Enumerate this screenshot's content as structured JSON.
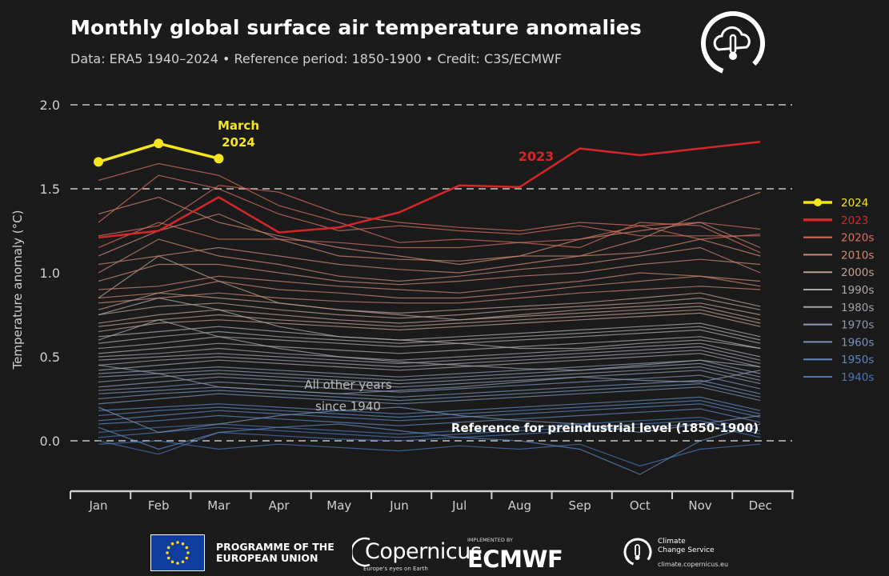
{
  "header": {
    "title": "Monthly global surface air temperature anomalies",
    "subtitle": "Data: ERA5 1940–2024 • Reference period: 1850-1900 • Credit: C3S/ECMWF"
  },
  "chart_data": {
    "type": "line",
    "ylabel": "Temperature anomaly (°C)",
    "ylim": [
      -0.3,
      2.0
    ],
    "yticks": [
      0.0,
      0.5,
      1.0,
      1.5,
      2.0
    ],
    "ytick_labels": [
      "0.0",
      "0.5",
      "1.0",
      "1.5",
      "2.0"
    ],
    "categories": [
      "Jan",
      "Feb",
      "Mar",
      "Apr",
      "May",
      "Jun",
      "Jul",
      "Aug",
      "Sep",
      "Oct",
      "Nov",
      "Dec"
    ],
    "grid": "dashed horizontal at 0.0, 1.5, 2.0",
    "legend_position": "right",
    "highlight_series": [
      {
        "name": "2024",
        "color": "#f5e51c",
        "values": [
          1.66,
          1.77,
          1.68
        ]
      },
      {
        "name": "2023",
        "color": "#d7262a",
        "values": [
          1.21,
          1.25,
          1.45,
          1.24,
          1.27,
          1.36,
          1.52,
          1.51,
          1.74,
          1.7,
          1.74,
          1.78
        ]
      }
    ],
    "decade_series": [
      {
        "name": "2020s",
        "color": "#d9705f",
        "values": [
          [
            1.22,
            1.28,
            1.52,
            1.48,
            1.35,
            1.3,
            1.27,
            1.25,
            1.3,
            1.28,
            1.3,
            1.26
          ],
          [
            1.3,
            1.58,
            1.5,
            1.35,
            1.25,
            1.28,
            1.25,
            1.23,
            1.28,
            1.22,
            1.22,
            1.22
          ],
          [
            1.15,
            1.3,
            1.2,
            1.2,
            1.18,
            1.15,
            1.15,
            1.18,
            1.15,
            1.3,
            1.28,
            1.12
          ],
          [
            1.55,
            1.65,
            1.58,
            1.4,
            1.3,
            1.18,
            1.2,
            1.18,
            1.2,
            1.28,
            1.2,
            1.23
          ]
        ]
      },
      {
        "name": "2010s",
        "color": "#cc8a72",
        "values": [
          [
            1.35,
            1.45,
            1.3,
            1.22,
            1.15,
            1.1,
            1.05,
            1.1,
            1.1,
            1.2,
            1.35,
            1.48
          ],
          [
            1.1,
            1.25,
            1.35,
            1.2,
            1.1,
            1.08,
            1.07,
            1.1,
            1.2,
            1.25,
            1.3,
            1.15
          ],
          [
            1.05,
            1.1,
            1.15,
            1.1,
            1.05,
            1.02,
            1.0,
            1.05,
            1.1,
            1.12,
            1.2,
            1.1
          ],
          [
            1.0,
            1.2,
            1.1,
            1.05,
            0.98,
            0.95,
            0.98,
            1.02,
            1.05,
            1.1,
            1.15,
            1.0
          ],
          [
            0.95,
            1.05,
            1.05,
            1.0,
            0.95,
            0.93,
            0.95,
            0.98,
            1.0,
            1.05,
            1.08,
            1.05
          ],
          [
            0.9,
            0.92,
            0.98,
            0.95,
            0.92,
            0.9,
            0.88,
            0.92,
            0.95,
            1.0,
            0.98,
            0.95
          ],
          [
            0.85,
            0.88,
            0.95,
            0.9,
            0.88,
            0.85,
            0.85,
            0.88,
            0.92,
            0.95,
            0.98,
            0.92
          ],
          [
            0.82,
            0.85,
            0.88,
            0.85,
            0.83,
            0.82,
            0.82,
            0.85,
            0.88,
            0.9,
            0.92,
            0.9
          ]
        ]
      },
      {
        "name": "2000s",
        "color": "#bfa090",
        "values": [
          [
            0.78,
            0.88,
            0.85,
            0.82,
            0.78,
            0.76,
            0.78,
            0.8,
            0.82,
            0.85,
            0.88,
            0.8
          ],
          [
            0.75,
            0.8,
            0.82,
            0.78,
            0.75,
            0.73,
            0.75,
            0.78,
            0.8,
            0.82,
            0.85,
            0.78
          ],
          [
            0.85,
            1.1,
            0.95,
            0.82,
            0.78,
            0.75,
            0.72,
            0.75,
            0.78,
            0.8,
            0.82,
            0.75
          ],
          [
            0.7,
            0.75,
            0.78,
            0.75,
            0.72,
            0.7,
            0.72,
            0.74,
            0.76,
            0.78,
            0.8,
            0.72
          ],
          [
            0.68,
            0.72,
            0.75,
            0.72,
            0.7,
            0.68,
            0.7,
            0.72,
            0.74,
            0.76,
            0.78,
            0.7
          ],
          [
            0.65,
            0.7,
            0.72,
            0.7,
            0.68,
            0.66,
            0.68,
            0.7,
            0.72,
            0.74,
            0.76,
            0.68
          ]
        ]
      },
      {
        "name": "1990s",
        "color": "#b0aaa6",
        "values": [
          [
            0.62,
            0.65,
            0.68,
            0.65,
            0.62,
            0.6,
            0.62,
            0.64,
            0.66,
            0.68,
            0.7,
            0.62
          ],
          [
            0.58,
            0.62,
            0.65,
            0.62,
            0.6,
            0.58,
            0.6,
            0.62,
            0.64,
            0.66,
            0.68,
            0.6
          ],
          [
            0.75,
            0.85,
            0.78,
            0.68,
            0.62,
            0.6,
            0.58,
            0.55,
            0.55,
            0.58,
            0.6,
            0.55
          ],
          [
            0.55,
            0.58,
            0.62,
            0.6,
            0.58,
            0.56,
            0.58,
            0.6,
            0.62,
            0.64,
            0.66,
            0.58
          ],
          [
            0.52,
            0.55,
            0.58,
            0.56,
            0.54,
            0.52,
            0.54,
            0.56,
            0.58,
            0.6,
            0.62,
            0.55
          ]
        ]
      },
      {
        "name": "1980s",
        "color": "#a0a4ab",
        "values": [
          [
            0.5,
            0.52,
            0.55,
            0.52,
            0.5,
            0.48,
            0.5,
            0.52,
            0.54,
            0.56,
            0.58,
            0.5
          ],
          [
            0.48,
            0.5,
            0.52,
            0.5,
            0.48,
            0.46,
            0.48,
            0.5,
            0.52,
            0.54,
            0.56,
            0.48
          ],
          [
            0.45,
            0.48,
            0.5,
            0.48,
            0.46,
            0.44,
            0.46,
            0.48,
            0.5,
            0.52,
            0.54,
            0.46
          ],
          [
            0.6,
            0.72,
            0.62,
            0.55,
            0.5,
            0.47,
            0.45,
            0.43,
            0.42,
            0.45,
            0.48,
            0.44
          ],
          [
            0.42,
            0.45,
            0.48,
            0.46,
            0.44,
            0.42,
            0.44,
            0.46,
            0.48,
            0.5,
            0.52,
            0.44
          ]
        ]
      },
      {
        "name": "1970s",
        "color": "#8c9bb0",
        "values": [
          [
            0.4,
            0.42,
            0.44,
            0.42,
            0.4,
            0.38,
            0.4,
            0.42,
            0.44,
            0.46,
            0.48,
            0.4
          ],
          [
            0.38,
            0.4,
            0.42,
            0.4,
            0.38,
            0.36,
            0.38,
            0.4,
            0.42,
            0.44,
            0.46,
            0.38
          ],
          [
            0.35,
            0.38,
            0.4,
            0.38,
            0.36,
            0.34,
            0.36,
            0.38,
            0.4,
            0.42,
            0.44,
            0.36
          ],
          [
            0.32,
            0.35,
            0.38,
            0.36,
            0.34,
            0.32,
            0.34,
            0.36,
            0.38,
            0.4,
            0.42,
            0.34
          ],
          [
            0.45,
            0.4,
            0.32,
            0.3,
            0.28,
            0.3,
            0.32,
            0.35,
            0.38,
            0.36,
            0.35,
            0.42
          ]
        ]
      },
      {
        "name": "1960s",
        "color": "#7a93b8",
        "values": [
          [
            0.3,
            0.32,
            0.35,
            0.33,
            0.31,
            0.29,
            0.31,
            0.33,
            0.35,
            0.37,
            0.39,
            0.31
          ],
          [
            0.28,
            0.3,
            0.32,
            0.3,
            0.28,
            0.26,
            0.28,
            0.3,
            0.32,
            0.34,
            0.36,
            0.28
          ],
          [
            0.25,
            0.28,
            0.3,
            0.28,
            0.26,
            0.24,
            0.26,
            0.28,
            0.3,
            0.32,
            0.34,
            0.26
          ],
          [
            0.22,
            0.25,
            0.28,
            0.26,
            0.24,
            0.22,
            0.24,
            0.26,
            0.28,
            0.3,
            0.32,
            0.24
          ],
          [
            0.2,
            0.05,
            0.1,
            0.15,
            0.18,
            0.2,
            0.15,
            0.12,
            0.1,
            0.05,
            0.1,
            0.15
          ]
        ]
      },
      {
        "name": "1950s",
        "color": "#5f87bd",
        "values": [
          [
            0.18,
            0.2,
            0.22,
            0.2,
            0.18,
            0.16,
            0.18,
            0.2,
            0.22,
            0.24,
            0.26,
            0.18
          ],
          [
            0.15,
            0.18,
            0.2,
            0.18,
            0.16,
            0.14,
            0.16,
            0.18,
            0.2,
            0.22,
            0.24,
            0.16
          ],
          [
            0.12,
            0.15,
            0.18,
            0.16,
            0.14,
            0.12,
            0.14,
            0.16,
            0.18,
            0.2,
            0.22,
            0.14
          ],
          [
            0.1,
            0.12,
            0.15,
            0.13,
            0.11,
            0.09,
            0.11,
            0.13,
            0.15,
            0.17,
            0.19,
            0.11
          ],
          [
            0.08,
            -0.05,
            0.05,
            0.08,
            0.1,
            0.06,
            0.02,
            0.0,
            -0.05,
            -0.2,
            0.0,
            0.1
          ]
        ]
      },
      {
        "name": "1940s",
        "color": "#4a76b8",
        "values": [
          [
            0.05,
            0.08,
            0.1,
            0.08,
            0.06,
            0.04,
            0.06,
            0.08,
            0.1,
            0.12,
            0.14,
            0.06
          ],
          [
            0.02,
            0.05,
            0.08,
            0.06,
            0.04,
            0.02,
            0.04,
            0.06,
            0.08,
            0.1,
            0.12,
            0.04
          ],
          [
            0.0,
            -0.08,
            0.05,
            0.03,
            0.01,
            0.0,
            0.02,
            0.04,
            0.06,
            0.08,
            0.1,
            0.02
          ],
          [
            -0.02,
            0.0,
            -0.05,
            -0.02,
            -0.04,
            -0.06,
            -0.03,
            -0.05,
            -0.02,
            -0.15,
            -0.05,
            -0.02
          ]
        ]
      }
    ],
    "annotations": [
      {
        "text_lines": [
          "March",
          "2024"
        ],
        "color": "#f5e51c"
      },
      {
        "text_lines": [
          "2023"
        ],
        "color": "#d7262a"
      },
      {
        "text_lines": [
          "All other years",
          "since 1940"
        ],
        "color": "#bcbcbc"
      },
      {
        "text_lines": [
          "Reference for preindustrial level (1850-1900)"
        ],
        "color": "#ffffff"
      }
    ],
    "legend": [
      {
        "label": "2024",
        "color": "#f5e51c"
      },
      {
        "label": "2023",
        "color": "#d7262a"
      },
      {
        "label": "2020s",
        "color": "#d9705f"
      },
      {
        "label": "2010s",
        "color": "#cc8a72"
      },
      {
        "label": "2000s",
        "color": "#bfa090"
      },
      {
        "label": "1990s",
        "color": "#b0aaa6"
      },
      {
        "label": "1980s",
        "color": "#a0a4ab"
      },
      {
        "label": "1970s",
        "color": "#8c9bb0"
      },
      {
        "label": "1960s",
        "color": "#7a93b8"
      },
      {
        "label": "1950s",
        "color": "#5f87bd"
      },
      {
        "label": "1940s",
        "color": "#4a76b8"
      }
    ]
  },
  "footer": {
    "eu_text_line1": "PROGRAMME OF THE",
    "eu_text_line2": "EUROPEAN UNION",
    "copernicus_name": "Copernicus",
    "copernicus_tag": "Europe's eyes on Earth",
    "ecmwf_small": "IMPLEMENTED BY",
    "ecmwf_name": "ECMWF",
    "c3s_line1": "Climate",
    "c3s_line2": "Change Service",
    "c3s_url": "climate.copernicus.eu"
  },
  "colors": {
    "background": "#1b1b1c",
    "highlight_2024": "#f5e51c",
    "highlight_2023": "#d7262a",
    "grid": "#9a9a9a"
  }
}
